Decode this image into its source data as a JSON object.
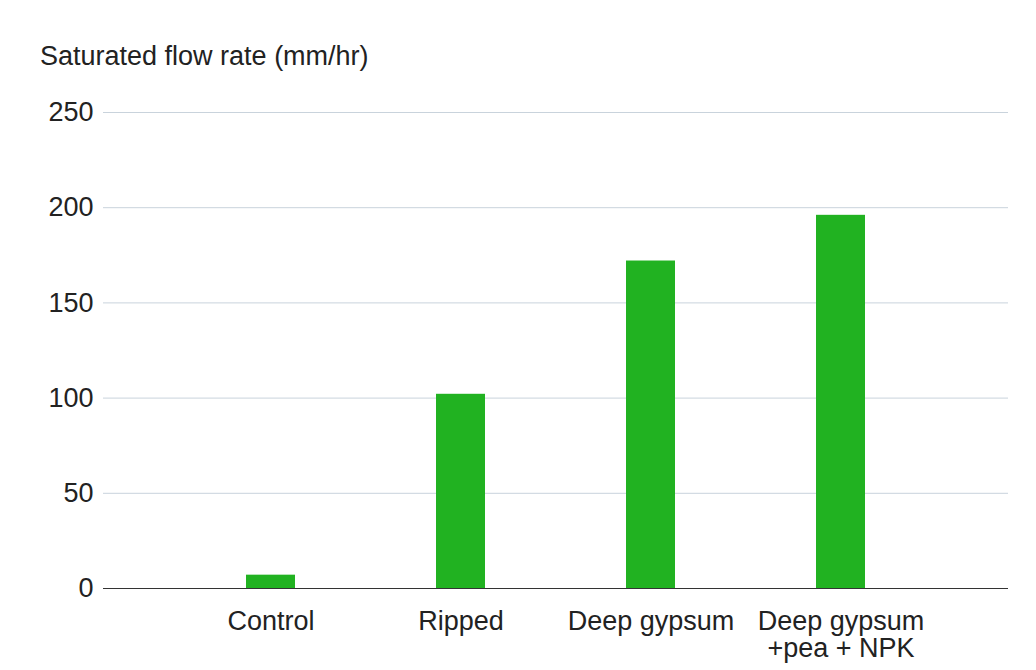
{
  "chart_data": {
    "type": "bar",
    "ylabel": "Saturated flow rate (mm/hr)",
    "categories": [
      "Control",
      "Ripped",
      "Deep gypsum",
      "Deep gypsum +pea + NPK"
    ],
    "values": [
      7,
      102,
      172,
      196
    ],
    "color": "#21b221",
    "ylim": [
      0,
      250
    ],
    "yticks": [
      0,
      50,
      100,
      150,
      200,
      250
    ],
    "grid": true
  }
}
